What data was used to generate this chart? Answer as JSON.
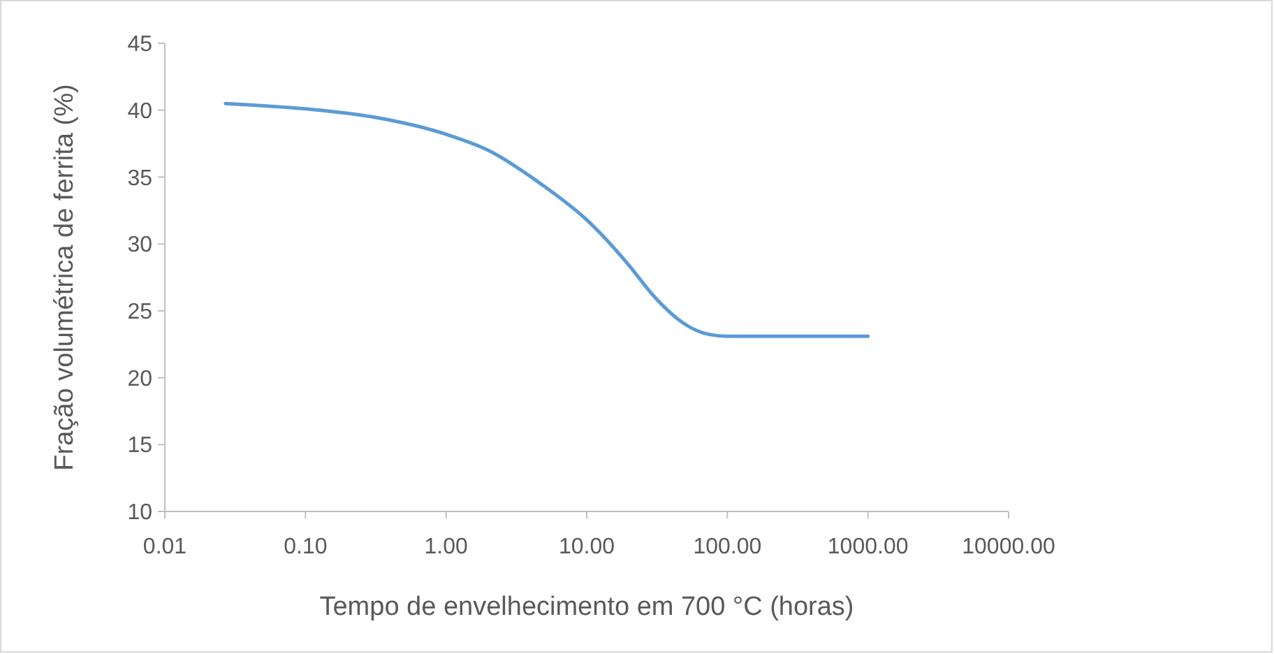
{
  "chart_data": {
    "type": "line",
    "xlabel": "Tempo de envelhecimento em 700 °C (horas)",
    "ylabel": "Fração volumétrica de ferrita (%)",
    "log": "x",
    "x": [
      0.027,
      0.1,
      0.3,
      1,
      2,
      5,
      10,
      20,
      30,
      50,
      70,
      100,
      200,
      1000
    ],
    "series": [
      {
        "color": "#5b9bd5",
        "values": [
          40.5,
          40.1,
          39.5,
          38.2,
          37,
          34.3,
          31.8,
          28.4,
          26.1,
          24,
          23.3,
          23.1,
          23.1,
          23.1
        ]
      }
    ],
    "xlim": [
      0.01,
      10000
    ],
    "xticks": [
      {
        "value": 0.01,
        "label": "0.01"
      },
      {
        "value": 0.1,
        "label": "0.10"
      },
      {
        "value": 1,
        "label": "1.00"
      },
      {
        "value": 10,
        "label": "10.00"
      },
      {
        "value": 100,
        "label": "100.00"
      },
      {
        "value": 1000,
        "label": "1000.00"
      },
      {
        "value": 10000,
        "label": "10000.00"
      }
    ],
    "ylim": [
      10,
      45
    ],
    "yticks": [
      10,
      15,
      20,
      25,
      30,
      35,
      40,
      45
    ],
    "grid": false,
    "marker": "none",
    "line_style": "solid"
  }
}
